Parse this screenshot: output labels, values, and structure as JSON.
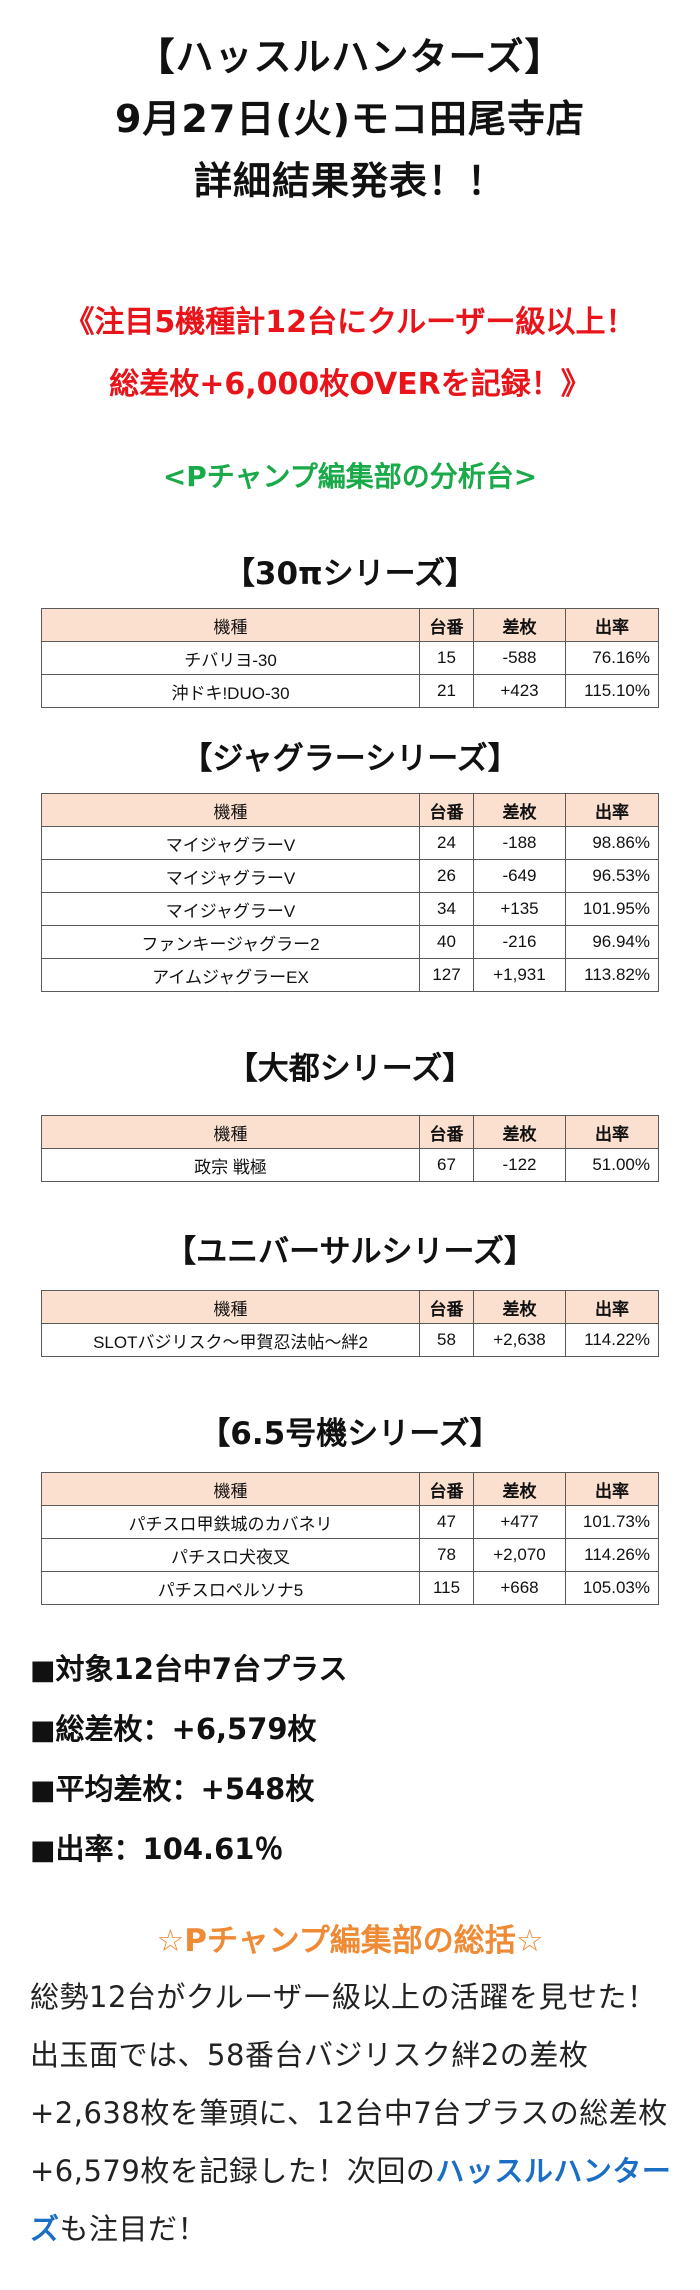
{
  "title": {
    "line1": "【ハッスルハンターズ】",
    "line2": "9月27日(火)モコ田尾寺店",
    "line3": "詳細結果発表！！"
  },
  "headline": {
    "line1": "《注目5機種計12台にクルーザー級以上！",
    "line2": "総差枚+6,000枚OVERを記録！》"
  },
  "analysis_title": "<Pチャンプ編集部の分析台>",
  "table_headers": {
    "machine": "機種",
    "number": "台番",
    "diff": "差枚",
    "rate": "出率"
  },
  "sections": [
    {
      "title": "【30πシリーズ】",
      "rows": [
        {
          "machine": "チバリヨ-30",
          "number": "15",
          "diff": "-588",
          "rate": "76.16%"
        },
        {
          "machine": "沖ドキ!DUO-30",
          "number": "21",
          "diff": "+423",
          "rate": "115.10%"
        }
      ]
    },
    {
      "title": "【ジャグラーシリーズ】",
      "rows": [
        {
          "machine": "マイジャグラーV",
          "number": "24",
          "diff": "-188",
          "rate": "98.86%"
        },
        {
          "machine": "マイジャグラーV",
          "number": "26",
          "diff": "-649",
          "rate": "96.53%"
        },
        {
          "machine": "マイジャグラーV",
          "number": "34",
          "diff": "+135",
          "rate": "101.95%"
        },
        {
          "machine": "ファンキージャグラー2",
          "number": "40",
          "diff": "-216",
          "rate": "96.94%"
        },
        {
          "machine": "アイムジャグラーEX",
          "number": "127",
          "diff": "+1,931",
          "rate": "113.82%"
        }
      ]
    },
    {
      "title": "【大都シリーズ】",
      "rows": [
        {
          "machine": "政宗 戦極",
          "number": "67",
          "diff": "-122",
          "rate": "51.00%"
        }
      ]
    },
    {
      "title": "【ユニバーサルシリーズ】",
      "rows": [
        {
          "machine": "SLOTバジリスク～甲賀忍法帖～絆2",
          "number": "58",
          "diff": "+2,638",
          "rate": "114.22%"
        }
      ]
    },
    {
      "title": "【6.5号機シリーズ】",
      "rows": [
        {
          "machine": "パチスロ甲鉄城のカバネリ",
          "number": "47",
          "diff": "+477",
          "rate": "101.73%"
        },
        {
          "machine": "パチスロ犬夜叉",
          "number": "78",
          "diff": "+2,070",
          "rate": "114.26%"
        },
        {
          "machine": "パチスロペルソナ5",
          "number": "115",
          "diff": "+668",
          "rate": "105.03%"
        }
      ]
    }
  ],
  "summary": {
    "bullet": "■",
    "items": [
      "対象12台中7台プラス",
      "総差枚：+6,579枚",
      "平均差枚：+548枚",
      "出率：104.61％"
    ]
  },
  "closing": {
    "title": "☆Pチャンプ編集部の総括☆",
    "text": "総勢12台がクルーザー級以上の活躍を見せた！出玉面では、58番台バジリスク絆2の差枚+2,638枚を筆頭に、12台中7台プラスの総差枚+6,579枚を記録した！次回の",
    "brand": "ハッスルハンターズ",
    "text_end": "も注目だ！"
  },
  "colors": {
    "headline": "#e8141a",
    "analysis": "#1aaa4a",
    "closing_title": "#ef8a35",
    "brand": "#1a6fc4",
    "table_header_bg": "#fce0cf"
  }
}
